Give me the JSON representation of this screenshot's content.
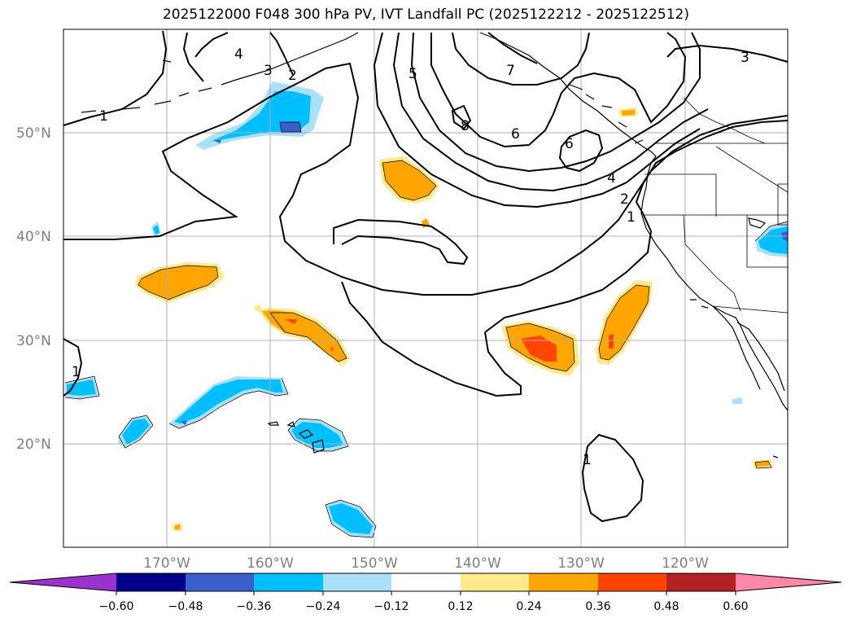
{
  "title": "2025122000 F048 300 hPa PV, IVT Landfall PC (2025122212 - 2025122512)",
  "axes": {
    "lat_labels": [
      "50°N",
      "40°N",
      "30°N",
      "20°N"
    ],
    "lon_labels": [
      "170°W",
      "160°W",
      "150°W",
      "140°W",
      "130°W",
      "120°W"
    ],
    "grid": true
  },
  "map_extent": {
    "lon_min": -180,
    "lon_max": -110,
    "lat_min": 10,
    "lat_max": 60
  },
  "colorbar": {
    "ticks": [
      "−0.60",
      "−0.48",
      "−0.36",
      "−0.24",
      "−0.12",
      "0.12",
      "0.24",
      "0.36",
      "0.48",
      "0.60"
    ],
    "colors": [
      "#9933cc",
      "#00008b",
      "#3a5fcd",
      "#00bfff",
      "#aae0fa",
      "#ffffff",
      "#ffe98a",
      "#ffa500",
      "#ff4500",
      "#b22222",
      "#ff88a8"
    ],
    "extend": "both"
  },
  "contour_labels": [
    "4",
    "3",
    "2",
    "1",
    "5",
    "7",
    "8",
    "6",
    "6",
    "4",
    "2",
    "1",
    "3",
    "1",
    "1"
  ],
  "colors": {
    "positive_light": "#ffe98a",
    "positive": "#ffa500",
    "positive_strong": "#ff4500",
    "negative_light": "#aae0fa",
    "negative": "#00bfff",
    "negative_strong": "#3a5fcd"
  }
}
